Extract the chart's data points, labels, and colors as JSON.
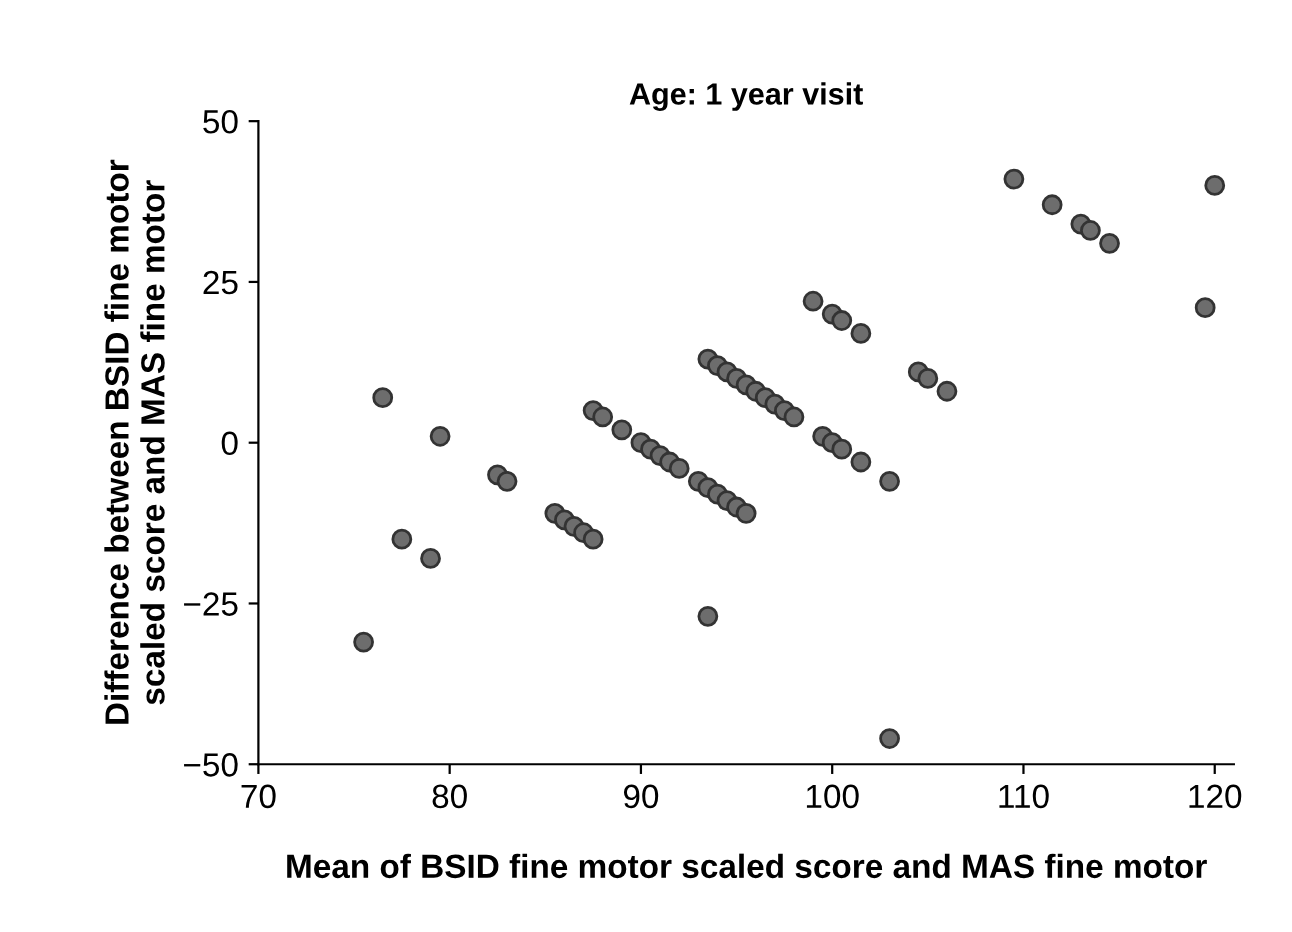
{
  "chart_data": {
    "type": "scatter",
    "title": "Age: 1 year visit",
    "xlabel": "Mean of BSID fine motor scaled score and MAS fine motor",
    "ylabel": "Difference between BSID fine motor\nscaled score and MAS fine motor",
    "x": [
      75.5,
      76.5,
      77.5,
      79,
      79.5,
      82.5,
      83,
      85.5,
      86,
      86.5,
      87,
      87.5,
      87.5,
      88,
      89,
      90,
      90.5,
      91,
      91.5,
      92,
      93,
      93.5,
      94,
      94.5,
      95,
      95.5,
      93.5,
      93.5,
      94,
      94.5,
      95,
      95.5,
      96,
      96.5,
      97,
      97.5,
      98,
      99,
      100,
      100.5,
      101.5,
      99.5,
      100,
      100.5,
      101.5,
      103,
      103,
      104.5,
      105,
      106,
      109.5,
      111.5,
      113,
      113.5,
      114.5,
      119.5,
      120
    ],
    "values": [
      -31,
      7,
      -15,
      -18,
      1,
      -5,
      -6,
      -11,
      -12,
      -13,
      -14,
      -15,
      5,
      4,
      2,
      0,
      -1,
      -2,
      -3,
      -4,
      -6,
      -7,
      -8,
      -9,
      -10,
      -11,
      -27,
      13,
      12,
      11,
      10,
      9,
      8,
      7,
      6,
      5,
      4,
      22,
      20,
      19,
      17,
      1,
      0,
      -1,
      -3,
      -6,
      -46,
      11,
      10,
      8,
      41,
      37,
      34,
      33,
      31,
      21,
      40
    ],
    "color": "#6d6d6d",
    "marker": "circle",
    "xlim": [
      70,
      121
    ],
    "ylim": [
      -50,
      50
    ],
    "xticks": [
      70,
      80,
      90,
      100,
      110,
      120
    ],
    "yticks": [
      {
        "value": -50,
        "label": "−50"
      },
      {
        "value": -25,
        "label": "−25"
      },
      0,
      25,
      50
    ],
    "grid": false
  }
}
